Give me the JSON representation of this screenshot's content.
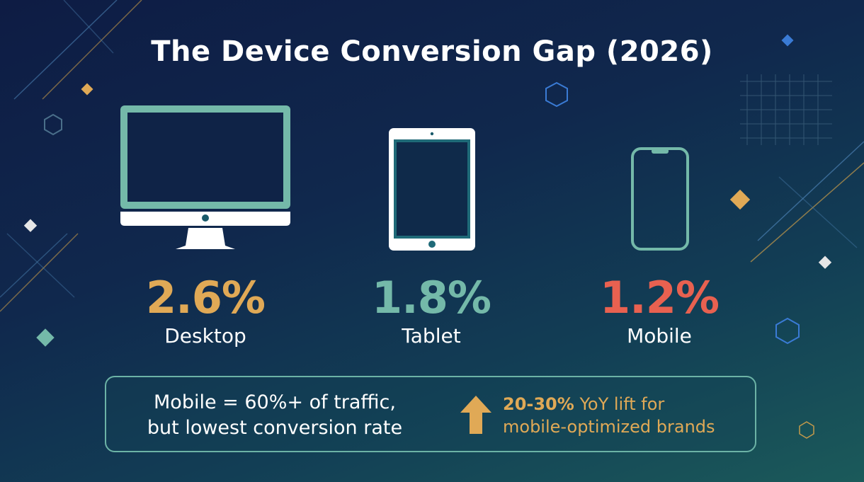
{
  "title": "The Device Conversion Gap (2026)",
  "colors": {
    "desktop": "#e0a956",
    "tablet": "#74b9a9",
    "mobile": "#e86150",
    "accent": "#e0a956",
    "border": "#6cb3a6"
  },
  "devices": [
    {
      "label": "Desktop",
      "rate": "2.6%",
      "icon": "desktop-monitor-icon"
    },
    {
      "label": "Tablet",
      "rate": "1.8%",
      "icon": "tablet-icon"
    },
    {
      "label": "Mobile",
      "rate": "1.2%",
      "icon": "smartphone-icon"
    }
  ],
  "callout": {
    "line1": "Mobile = 60%+ of traffic,",
    "line2": "but lowest conversion rate",
    "highlight": "20-30%",
    "lift_rest": " YoY lift for",
    "lift_line2": "mobile-optimized brands",
    "icon": "arrow-up-icon"
  }
}
